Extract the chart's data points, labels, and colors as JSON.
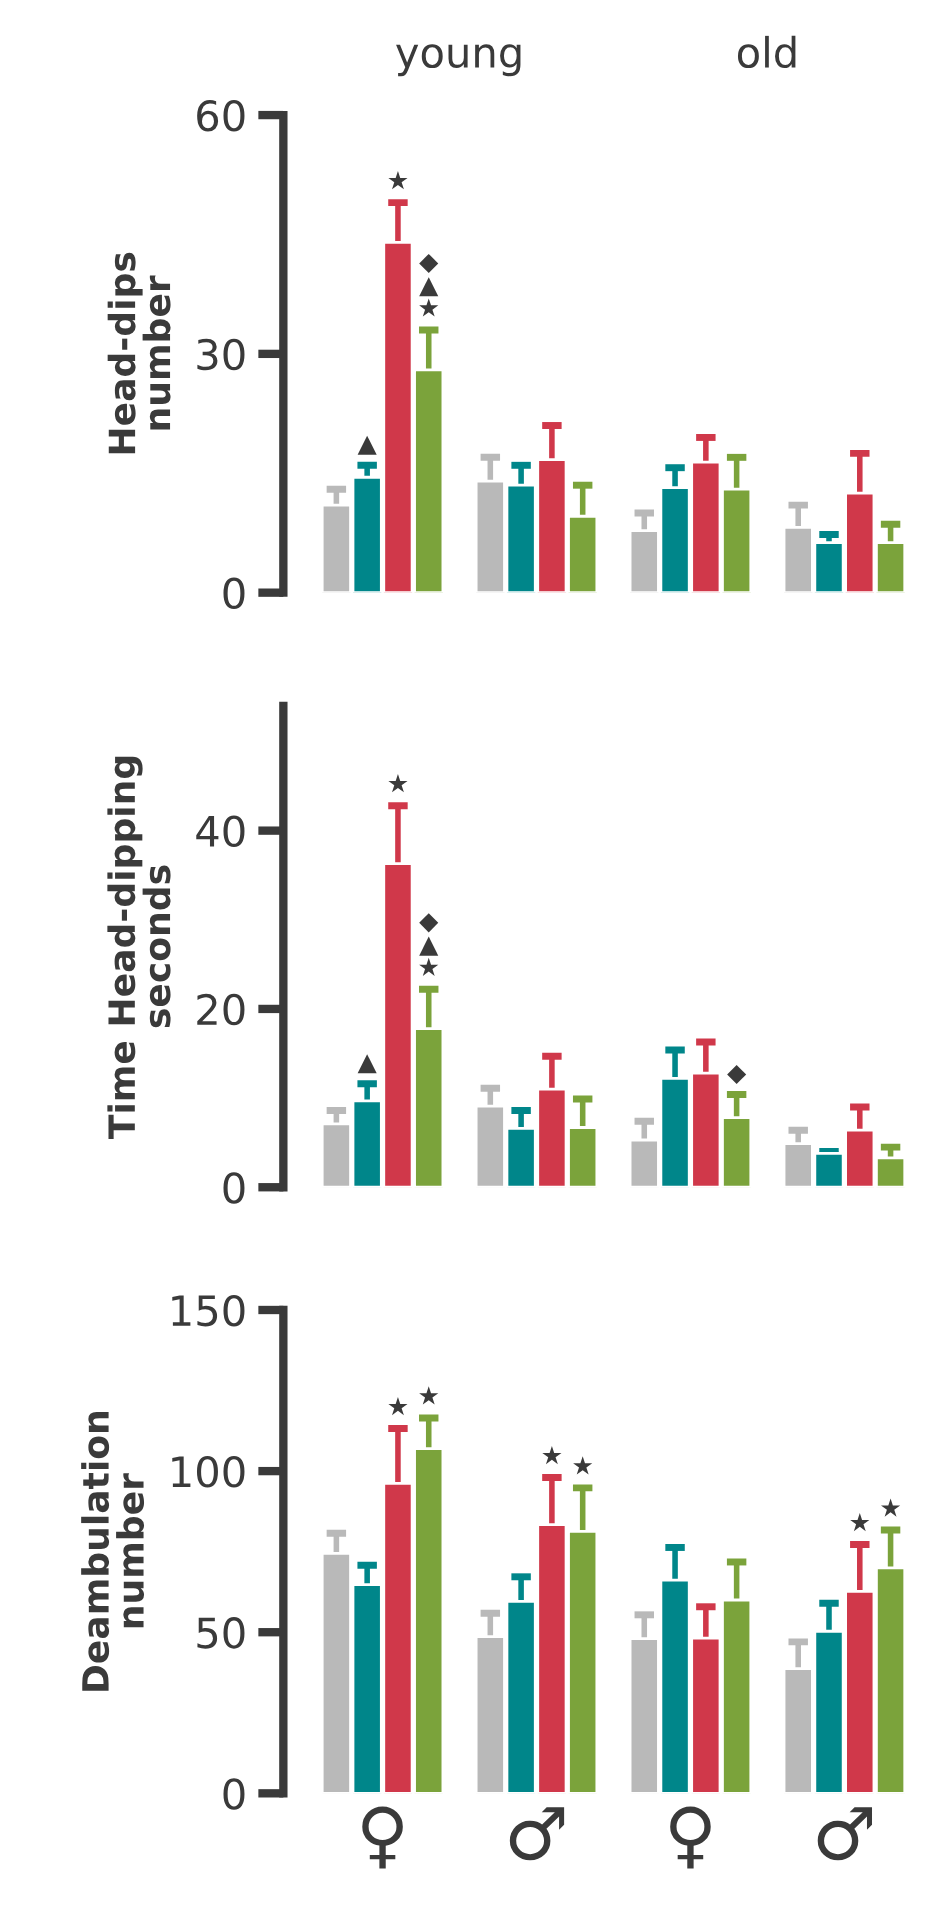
{
  "chart_data": [
    {
      "type": "bar",
      "ylabel": "Head-dips\nnumber",
      "annotations": [
        "young",
        "old"
      ],
      "categories": [
        null,
        null,
        null,
        null
      ],
      "ylim": [
        0,
        60
      ],
      "yticks": [
        0,
        30,
        60
      ],
      "grid": false,
      "series": [
        {
          "color": "#b9b9b9",
          "values": [
            11,
            14,
            7.8,
            8.2
          ],
          "errors": [
            2,
            3,
            2.2,
            2.8
          ],
          "value_labels": [
            null,
            null,
            null,
            null
          ]
        },
        {
          "color": "#00868a",
          "values": [
            14.5,
            13.5,
            13.2,
            6.3
          ],
          "errors": [
            1.5,
            2.5,
            2.5,
            1
          ],
          "value_labels": [
            "▲",
            null,
            null,
            null
          ]
        },
        {
          "color": "#d0384a",
          "values": [
            44,
            16.7,
            16.4,
            12.5
          ],
          "errors": [
            5,
            4.3,
            3.1,
            5
          ],
          "value_labels": [
            "★",
            null,
            null,
            null
          ]
        },
        {
          "color": "#7ba33b",
          "values": [
            28,
            9.6,
            13,
            6.3
          ],
          "errors": [
            5,
            3.9,
            4,
            2.3
          ],
          "value_labels": [
            "◆\n▲\n★",
            null,
            null,
            null
          ]
        }
      ]
    },
    {
      "type": "bar",
      "ylabel": "Time Head-dipping\nseconds",
      "categories": [
        null,
        null,
        null,
        null
      ],
      "ylim": [
        0,
        54
      ],
      "yticks": [
        0,
        20,
        40
      ],
      "grid": false,
      "series": [
        {
          "color": "#b9b9b9",
          "values": [
            7.1,
            9.1,
            5.3,
            4.9
          ],
          "errors": [
            1.5,
            2,
            2.1,
            1.5
          ],
          "value_labels": [
            null,
            null,
            null,
            null
          ]
        },
        {
          "color": "#00868a",
          "values": [
            9.7,
            6.6,
            12.2,
            3.8
          ],
          "errors": [
            1.9,
            2,
            3.2,
            0.2
          ],
          "value_labels": [
            "▲",
            null,
            null,
            null
          ]
        },
        {
          "color": "#d0384a",
          "values": [
            36.3,
            11,
            12.8,
            6.4
          ],
          "errors": [
            6.5,
            3.7,
            3.5,
            2.6
          ],
          "value_labels": [
            "★",
            null,
            null,
            null
          ]
        },
        {
          "color": "#7ba33b",
          "values": [
            17.8,
            6.7,
            7.8,
            3.3
          ],
          "errors": [
            4.4,
            3.2,
            2.6,
            1.2
          ],
          "value_labels": [
            "◆\n▲\n★",
            null,
            "◆",
            null
          ]
        }
      ]
    },
    {
      "type": "bar",
      "ylabel": "Deambulation\nnumber",
      "categories": [
        "♀",
        "♂",
        "♀",
        "♂"
      ],
      "ylim": [
        0,
        150
      ],
      "yticks": [
        0,
        50,
        100,
        150
      ],
      "grid": false,
      "series": [
        {
          "color": "#b9b9b9",
          "values": [
            74.5,
            48.6,
            48,
            38.7
          ],
          "errors": [
            6.2,
            7.3,
            7.4,
            8.3
          ],
          "value_labels": [
            null,
            null,
            null,
            null
          ]
        },
        {
          "color": "#00868a",
          "values": [
            64.8,
            59.6,
            66.2,
            50.3
          ],
          "errors": [
            6,
            7.6,
            10.1,
            8.7
          ],
          "value_labels": [
            null,
            null,
            null,
            null
          ]
        },
        {
          "color": "#d0384a",
          "values": [
            96.2,
            83.4,
            48.2,
            62.7
          ],
          "errors": [
            17,
            14.6,
            9.7,
            14.5
          ],
          "value_labels": [
            "★",
            "★",
            null,
            "★"
          ]
        },
        {
          "color": "#7ba33b",
          "values": [
            107,
            81.3,
            60,
            70
          ],
          "errors": [
            9.5,
            13.5,
            11.8,
            11.7
          ],
          "value_labels": [
            "★",
            "★",
            null,
            "★"
          ]
        }
      ]
    }
  ]
}
